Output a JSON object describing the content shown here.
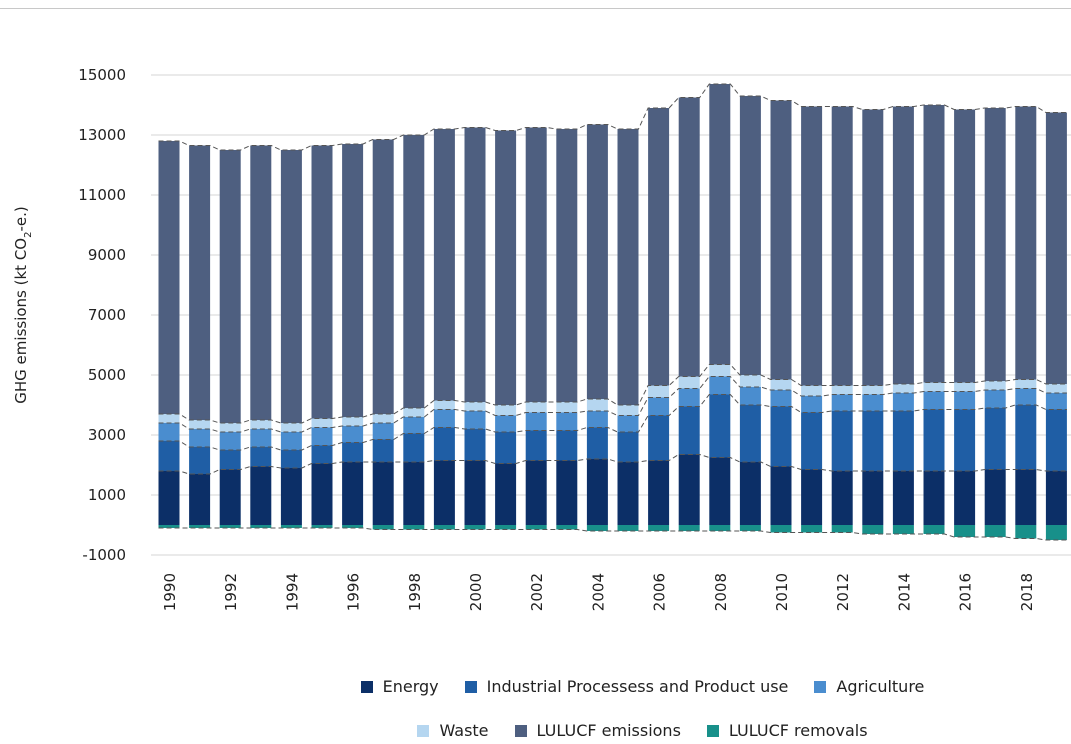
{
  "chart_data": {
    "type": "bar",
    "stacked": true,
    "ylabel": "GHG emissions (kt CO",
    "ylabel_sub": "2",
    "ylabel_tail": "-e.)",
    "ylim": [
      -1000,
      15500
    ],
    "yticks": [
      15000,
      13000,
      11000,
      9000,
      7000,
      5000,
      3000,
      1000,
      -1000
    ],
    "gridlines": true,
    "legend_position": "bottom",
    "categories": [
      1990,
      1991,
      1992,
      1993,
      1994,
      1995,
      1996,
      1997,
      1998,
      1999,
      2000,
      2001,
      2002,
      2003,
      2004,
      2005,
      2006,
      2007,
      2008,
      2009,
      2010,
      2011,
      2012,
      2013,
      2014,
      2015,
      2016,
      2017,
      2018,
      2019
    ],
    "x_tick_labels": [
      "1990",
      "1992",
      "1994",
      "1996",
      "1998",
      "2000",
      "2002",
      "2004",
      "2006",
      "2008",
      "2010",
      "2012",
      "2014",
      "2016",
      "2018"
    ],
    "series": [
      {
        "name": "Energy",
        "color": "#0c2f67",
        "values": [
          1800,
          1700,
          1850,
          1950,
          1900,
          2050,
          2100,
          2100,
          2100,
          2150,
          2150,
          2050,
          2150,
          2150,
          2200,
          2100,
          2150,
          2350,
          2250,
          2100,
          1950,
          1850,
          1800,
          1800,
          1800,
          1800,
          1800,
          1850,
          1850,
          1800
        ]
      },
      {
        "name": "Industrial Processess and Product use",
        "color": "#1f5ea5",
        "values": [
          1000,
          900,
          650,
          650,
          600,
          600,
          650,
          750,
          950,
          1100,
          1050,
          1050,
          1000,
          1000,
          1050,
          1000,
          1500,
          1600,
          2100,
          1900,
          2000,
          1900,
          2000,
          2000,
          2000,
          2050,
          2050,
          2050,
          2150,
          2050
        ]
      },
      {
        "name": "Agriculture",
        "color": "#4a8dcf",
        "values": [
          600,
          600,
          600,
          600,
          600,
          600,
          550,
          550,
          550,
          600,
          600,
          550,
          600,
          600,
          550,
          550,
          600,
          600,
          600,
          600,
          550,
          550,
          550,
          550,
          600,
          600,
          600,
          600,
          550,
          550
        ]
      },
      {
        "name": "Waste",
        "color": "#b5d6f0",
        "values": [
          300,
          300,
          300,
          300,
          300,
          300,
          300,
          300,
          300,
          300,
          300,
          350,
          350,
          350,
          400,
          350,
          400,
          400,
          400,
          400,
          350,
          350,
          300,
          300,
          300,
          300,
          300,
          300,
          300,
          300
        ]
      },
      {
        "name": "LULUCF emissions",
        "color": "#4e5f80",
        "values": [
          9100,
          9150,
          9100,
          9150,
          9100,
          9100,
          9100,
          9150,
          9100,
          9050,
          9150,
          9150,
          9150,
          9100,
          9150,
          9200,
          9250,
          9300,
          9350,
          9300,
          9300,
          9300,
          9300,
          9200,
          9250,
          9250,
          9100,
          9100,
          9100,
          9050
        ]
      },
      {
        "name": "LULUCF removals",
        "color": "#18908a",
        "values": [
          -100,
          -100,
          -100,
          -100,
          -100,
          -100,
          -100,
          -150,
          -150,
          -150,
          -150,
          -150,
          -150,
          -150,
          -200,
          -200,
          -200,
          -200,
          -200,
          -200,
          -250,
          -250,
          -250,
          -300,
          -300,
          -300,
          -400,
          -400,
          -450,
          -500
        ]
      }
    ]
  }
}
